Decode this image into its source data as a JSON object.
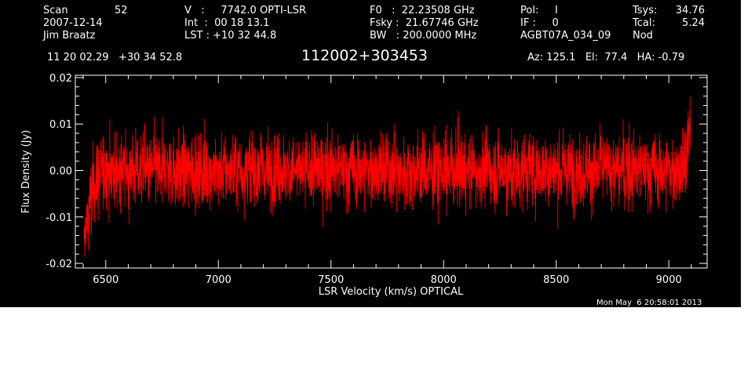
{
  "header": {
    "scan_label": "Scan",
    "scan_value": "52",
    "date": "2007-12-14",
    "observer": "Jim Braatz",
    "v_line": "V   :     7742.0 OPTI-LSR",
    "int_line": "Int  :  00 18 13.1",
    "lst_line": "LST : +10 32 44.8",
    "f0_line": "F0   :  22.23508 GHz",
    "fsky_line": "Fsky :  21.67746 GHz",
    "bw_line": "BW   : 200.0000 MHz",
    "pol_line": "Pol:     I",
    "if_line": "IF :     0",
    "project": "AGBT07A_034_09",
    "tsys_label": "Tsys:",
    "tsys_value": "34.76",
    "tcal_label": "Tcal:",
    "tcal_value": "5.24",
    "mode": "Nod",
    "coords": "11 20 02.29   +30 34 52.8",
    "source": "112002+303453",
    "az_el_ha": "Az: 125.1   El:  77.4   HA: -0.79",
    "timestamp": "Mon May  6 20:58:01 2013"
  },
  "colors": {
    "background": "#000000",
    "foreground": "#ffffff",
    "trace": "#ff0000"
  },
  "chart_data": {
    "type": "line",
    "title": "112002+303453",
    "xlabel": "LSR Velocity (km/s) OPTICAL",
    "ylabel": "Flux Density (Jy)",
    "xlim": [
      6365,
      9170
    ],
    "ylim": [
      -0.021,
      0.0205
    ],
    "xticks": [
      6500,
      7000,
      7500,
      8000,
      8500,
      9000
    ],
    "xtick_labels": [
      "6500",
      "7000",
      "7500",
      "8000",
      "8500",
      "9000"
    ],
    "yticks": [
      -0.02,
      -0.01,
      0.0,
      0.01,
      0.02
    ],
    "ytick_labels": [
      "-0.02",
      "-0.01",
      "0.00",
      "0.01",
      "0.02"
    ],
    "grid": false,
    "series": [
      {
        "color": "#ff0000",
        "x": [
          6403,
          6410,
          6420,
          6430,
          6445,
          6460,
          6480,
          6500,
          6550,
          6600,
          6650,
          6700,
          6750,
          6800,
          6850,
          6900,
          6950,
          7000,
          7050,
          7100,
          7150,
          7200,
          7250,
          7300,
          7350,
          7400,
          7450,
          7500,
          7550,
          7600,
          7650,
          7700,
          7750,
          7800,
          7850,
          7900,
          7950,
          8000,
          8050,
          8100,
          8150,
          8200,
          8250,
          8300,
          8350,
          8400,
          8450,
          8500,
          8550,
          8600,
          8650,
          8700,
          8750,
          8800,
          8850,
          8900,
          8950,
          9000,
          9030,
          9050,
          9070,
          9080,
          9090,
          9096
        ],
        "y": [
          -0.016,
          -0.013,
          -0.01,
          -0.007,
          -0.004,
          -0.002,
          -0.001,
          0.0,
          0.0,
          0.0,
          0.0,
          0.0,
          0.0,
          0.0,
          0.0,
          0.0,
          0.0,
          0.0,
          0.0,
          0.0,
          0.0,
          0.0,
          0.0,
          0.0,
          0.0,
          0.0,
          0.0,
          0.0,
          0.0,
          0.0,
          0.0,
          0.0,
          0.0,
          0.0,
          0.0,
          0.0,
          0.0,
          0.0,
          0.0,
          0.0,
          0.0,
          0.0,
          0.0,
          0.0,
          0.0,
          0.0,
          0.0,
          0.0,
          0.0,
          0.0,
          0.0,
          0.0,
          0.0,
          0.0,
          0.0,
          0.0,
          0.0,
          0.0,
          0.0,
          0.0,
          0.001,
          0.003,
          0.006,
          0.011
        ],
        "noise_rms_jy": 0.004
      }
    ]
  }
}
